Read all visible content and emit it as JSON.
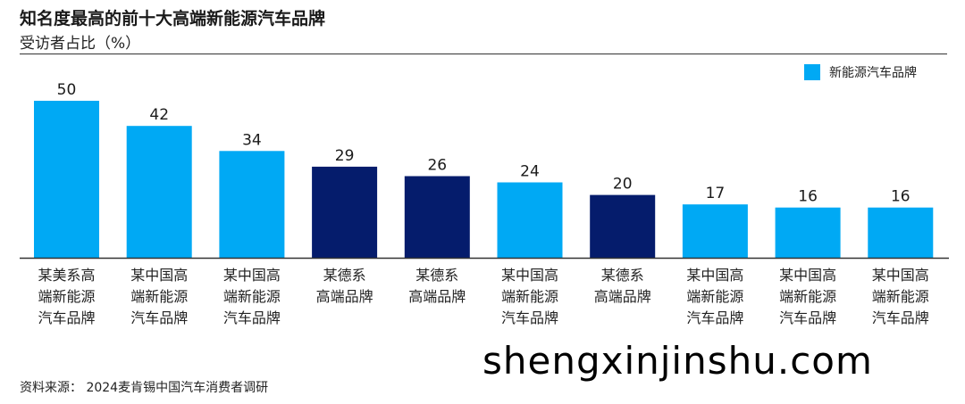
{
  "title": "知名度最高的前十大高端新能源汽车品牌",
  "subtitle": "受访者占比（%）",
  "source": "资料来源： 2024麦肯锡中国汽车消费者调研",
  "watermark": "shengxinjinshu.com",
  "colors": {
    "light_blue": "#00a9f4",
    "navy": "#051c6c",
    "axis": "#333333",
    "text": "#222222"
  },
  "chart_data": {
    "type": "bar",
    "title": "知名度最高的前十大高端新能源汽车品牌",
    "subtitle": "受访者占比（%）",
    "legend": {
      "position": "top-right",
      "entries": [
        {
          "label": "新能源汽车品牌",
          "color": "#00a9f4"
        }
      ]
    },
    "grid": false,
    "ylim": [
      0,
      50
    ],
    "categories": [
      "某美系高端新能源汽车品牌",
      "某中国高端新能源汽车品牌",
      "某中国高端新能源汽车品牌",
      "某德系高端品牌",
      "某德系高端品牌",
      "某中国高端新能源汽车品牌",
      "某德系高端品牌",
      "某中国高端新能源汽车品牌",
      "某中国高端新能源汽车品牌",
      "某中国高端新能源汽车品牌"
    ],
    "category_lines": [
      [
        "某美系高",
        "端新能源",
        "汽车品牌"
      ],
      [
        "某中国高",
        "端新能源",
        "汽车品牌"
      ],
      [
        "某中国高",
        "端新能源",
        "汽车品牌"
      ],
      [
        "某德系",
        "高端品牌"
      ],
      [
        "某德系",
        "高端品牌"
      ],
      [
        "某中国高",
        "端新能源",
        "汽车品牌"
      ],
      [
        "某德系",
        "高端品牌"
      ],
      [
        "某中国高",
        "端新能源",
        "汽车品牌"
      ],
      [
        "某中国高",
        "端新能源",
        "汽车品牌"
      ],
      [
        "某中国高",
        "端新能源",
        "汽车品牌"
      ]
    ],
    "values": [
      50,
      42,
      34,
      29,
      26,
      24,
      20,
      17,
      16,
      16
    ],
    "bar_colors": [
      "#00a9f4",
      "#00a9f4",
      "#00a9f4",
      "#051c6c",
      "#051c6c",
      "#00a9f4",
      "#051c6c",
      "#00a9f4",
      "#00a9f4",
      "#00a9f4"
    ]
  }
}
